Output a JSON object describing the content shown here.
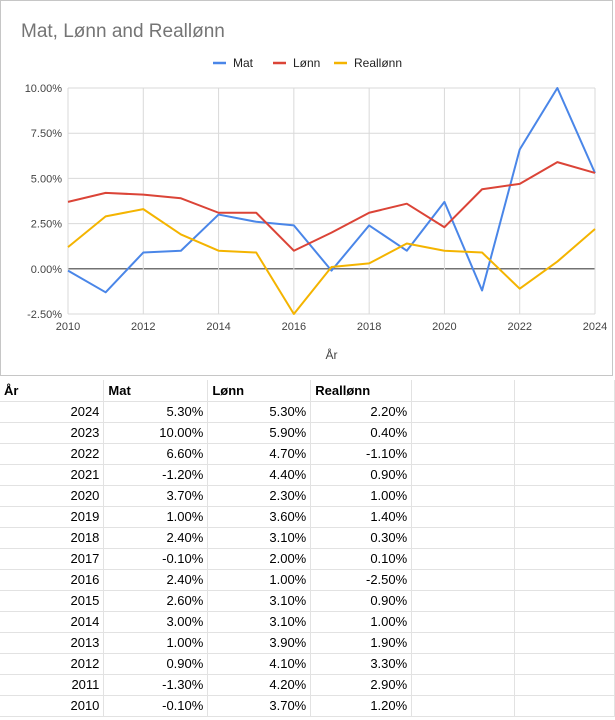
{
  "chart_data": {
    "type": "line",
    "title": "Mat, Lønn and Reallønn",
    "xlabel": "År",
    "ylabel": "",
    "x": [
      2010,
      2011,
      2012,
      2013,
      2014,
      2015,
      2016,
      2017,
      2018,
      2019,
      2020,
      2021,
      2022,
      2023,
      2024
    ],
    "xticks": [
      "2010",
      "2012",
      "2014",
      "2016",
      "2018",
      "2020",
      "2022",
      "2024"
    ],
    "yticks": [
      "-2.50%",
      "0.00%",
      "2.50%",
      "5.00%",
      "7.50%",
      "10.00%"
    ],
    "ylim": [
      -2.5,
      10
    ],
    "legend_position": "top",
    "grid": true,
    "series": [
      {
        "name": "Mat",
        "color": "#4a86e8",
        "values": [
          -0.1,
          -1.3,
          0.9,
          1.0,
          3.0,
          2.6,
          2.4,
          -0.1,
          2.4,
          1.0,
          3.7,
          -1.2,
          6.6,
          10.0,
          5.3
        ]
      },
      {
        "name": "Lønn",
        "color": "#db4437",
        "values": [
          3.7,
          4.2,
          4.1,
          3.9,
          3.1,
          3.1,
          1.0,
          2.0,
          3.1,
          3.6,
          2.3,
          4.4,
          4.7,
          5.9,
          5.3
        ]
      },
      {
        "name": "Reallønn",
        "color": "#f4b400",
        "values": [
          1.2,
          2.9,
          3.3,
          1.9,
          1.0,
          0.9,
          -2.5,
          0.1,
          0.3,
          1.4,
          1.0,
          0.9,
          -1.1,
          0.4,
          2.2
        ]
      }
    ]
  },
  "table": {
    "headers": [
      "År",
      "Mat",
      "Lønn",
      "Reallønn"
    ],
    "rows": [
      [
        "2024",
        "5.30%",
        "5.30%",
        "2.20%"
      ],
      [
        "2023",
        "10.00%",
        "5.90%",
        "0.40%"
      ],
      [
        "2022",
        "6.60%",
        "4.70%",
        "-1.10%"
      ],
      [
        "2021",
        "-1.20%",
        "4.40%",
        "0.90%"
      ],
      [
        "2020",
        "3.70%",
        "2.30%",
        "1.00%"
      ],
      [
        "2019",
        "1.00%",
        "3.60%",
        "1.40%"
      ],
      [
        "2018",
        "2.40%",
        "3.10%",
        "0.30%"
      ],
      [
        "2017",
        "-0.10%",
        "2.00%",
        "0.10%"
      ],
      [
        "2016",
        "2.40%",
        "1.00%",
        "-2.50%"
      ],
      [
        "2015",
        "2.60%",
        "3.10%",
        "0.90%"
      ],
      [
        "2014",
        "3.00%",
        "3.10%",
        "1.00%"
      ],
      [
        "2013",
        "1.00%",
        "3.90%",
        "1.90%"
      ],
      [
        "2012",
        "0.90%",
        "4.10%",
        "3.30%"
      ],
      [
        "2011",
        "-1.30%",
        "4.20%",
        "2.90%"
      ],
      [
        "2010",
        "-0.10%",
        "3.70%",
        "1.20%"
      ]
    ]
  }
}
